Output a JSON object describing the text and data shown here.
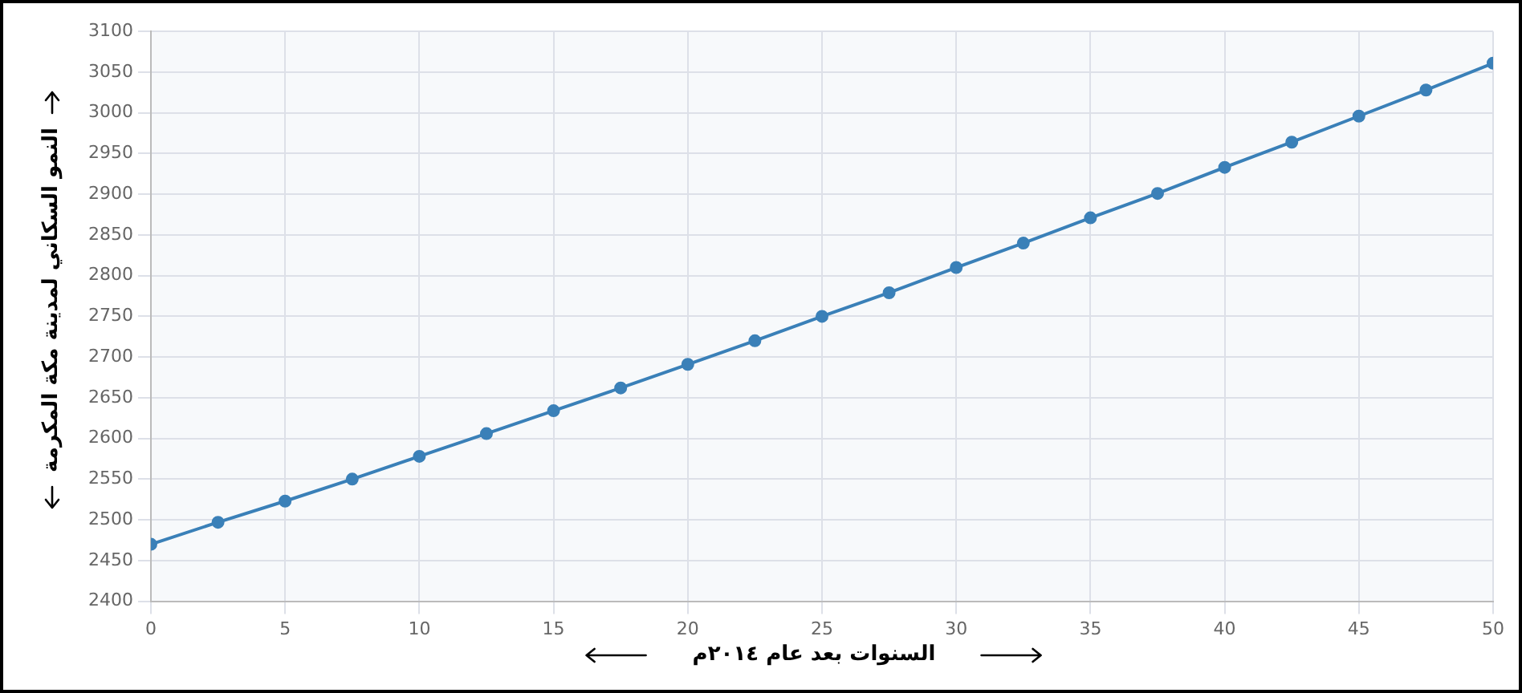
{
  "chart_data": {
    "type": "line",
    "xlabel": "السنوات بعد عام ٢٠١٤م",
    "ylabel": "النمو السكاني لمدينة مكة المكرمة",
    "x": [
      0,
      2.5,
      5,
      7.5,
      10,
      12.5,
      15,
      17.5,
      20,
      22.5,
      25,
      27.5,
      30,
      32.5,
      35,
      37.5,
      40,
      42.5,
      45,
      47.5,
      50
    ],
    "series": [
      {
        "color": "#3a80b8",
        "values": [
          2470,
          2497,
          2523,
          2550,
          2578,
          2606,
          2634,
          2662,
          2691,
          2720,
          2750,
          2779,
          2810,
          2840,
          2871,
          2901,
          2933,
          2964,
          2996,
          3028,
          3061
        ]
      }
    ],
    "xlim": [
      0,
      50
    ],
    "xticks": [
      0,
      5,
      10,
      15,
      20,
      25,
      30,
      35,
      40,
      45,
      50
    ],
    "ylim": [
      2400,
      3100
    ],
    "yticks": [
      2400,
      2450,
      2500,
      2550,
      2600,
      2650,
      2700,
      2750,
      2800,
      2850,
      2900,
      2950,
      3000,
      3050,
      3100
    ],
    "grid": true,
    "legend": false,
    "marker": "circle",
    "line_style": "solid"
  }
}
